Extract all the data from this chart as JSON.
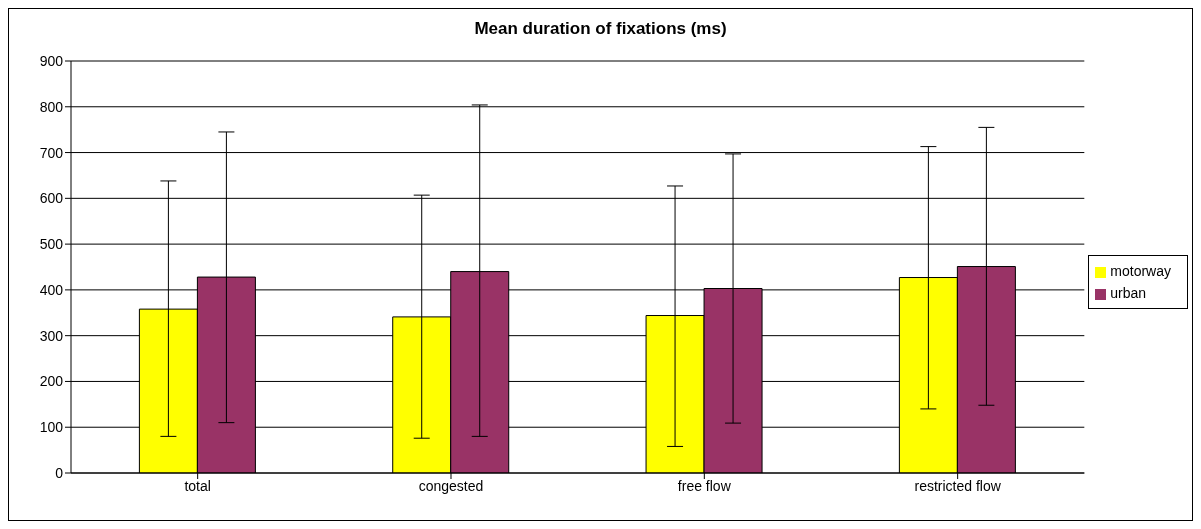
{
  "chart_data": {
    "type": "bar",
    "title": "Mean duration of fixations (ms)",
    "categories": [
      "total",
      "congested",
      "free flow",
      "restricted flow"
    ],
    "series": [
      {
        "name": "motorway",
        "color": "#ffff00",
        "values": [
          358,
          341,
          344,
          427
        ],
        "errors": [
          [
            80,
            638
          ],
          [
            76,
            607
          ],
          [
            58,
            627
          ],
          [
            140,
            713
          ]
        ]
      },
      {
        "name": "urban",
        "color": "#993366",
        "values": [
          428,
          440,
          403,
          451
        ],
        "errors": [
          [
            110,
            745
          ],
          [
            80,
            804
          ],
          [
            109,
            697
          ],
          [
            148,
            755
          ]
        ]
      }
    ],
    "ylim": [
      0,
      900
    ],
    "yticks": [
      0,
      100,
      200,
      300,
      400,
      500,
      600,
      700,
      800,
      900
    ],
    "grid": "y",
    "legend": "right"
  }
}
